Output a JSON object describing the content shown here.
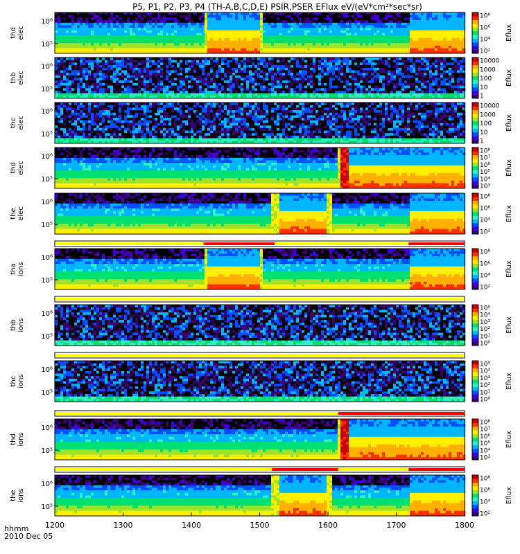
{
  "title": "P5, P1, P2, P3, P4 (TH-A,B,C,D,E) PSIR,PSER EFlux eV/(eV*cm²*sec*sr)",
  "footer": {
    "axis_unit": "hhmm",
    "date": "2010 Dec 05"
  },
  "chart_data": {
    "type": "heatmap",
    "title": "P5, P1, P2, P3, P4 (TH-A,B,C,D,E) PSIR,PSER EFlux eV/(eV*cm²*sec*sr)",
    "xlabel": "hhmm",
    "x_range": [
      1200,
      1800
    ],
    "x_ticks": [
      "1200",
      "1300",
      "1400",
      "1500",
      "1600",
      "1700",
      "1800"
    ],
    "date": "2010 Dec 05",
    "colormap": [
      "#3b0070",
      "#3f00e0",
      "#0050ff",
      "#00b7ff",
      "#2ef0c0",
      "#00e070",
      "#9ee22a",
      "#fff000",
      "#ffb000",
      "#ff3000",
      "#c80000"
    ],
    "panels": [
      {
        "id": "thd-elec",
        "ylabel": [
          "thd",
          "elec"
        ],
        "y_ticks": [
          "10⁵",
          "10⁶"
        ],
        "cbar_label": "Eflux",
        "cbar_ticks": [
          "10²",
          "10⁴",
          "10⁶",
          "10⁸"
        ],
        "intervals": [
          {
            "from": 1200,
            "to": 1418,
            "state": "quiet"
          },
          {
            "from": 1418,
            "to": 1425,
            "state": "boundary"
          },
          {
            "from": 1425,
            "to": 1500,
            "state": "sheath"
          },
          {
            "from": 1500,
            "to": 1506,
            "state": "boundary"
          },
          {
            "from": 1506,
            "to": 1718,
            "state": "quiet"
          },
          {
            "from": 1718,
            "to": 1800,
            "state": "sheath"
          }
        ]
      },
      {
        "id": "thb-elec",
        "ylabel": [
          "thb",
          "elec"
        ],
        "y_ticks": [
          "10⁵",
          "10⁶"
        ],
        "cbar_label": "Eflux",
        "cbar_ticks": [
          "1",
          "10",
          "100",
          "1000",
          "10000"
        ],
        "intervals": [
          {
            "from": 1200,
            "to": 1800,
            "state": "noise"
          }
        ]
      },
      {
        "id": "thc-elec",
        "ylabel": [
          "thc",
          "elec"
        ],
        "y_ticks": [
          "10⁵",
          "10⁶"
        ],
        "cbar_label": "Eflux",
        "cbar_ticks": [
          "1",
          "10",
          "100",
          "1000",
          "10000"
        ],
        "intervals": [
          {
            "from": 1200,
            "to": 1800,
            "state": "noise"
          }
        ]
      },
      {
        "id": "thd-elec-2",
        "ylabel": [
          "thd",
          "elec"
        ],
        "y_ticks": [
          "10⁵",
          "10⁶"
        ],
        "cbar_label": "Eflux",
        "cbar_ticks": [
          "10³",
          "10⁴",
          "10⁵",
          "10⁶",
          "10⁷",
          "10⁸"
        ],
        "intervals": [
          {
            "from": 1200,
            "to": 1615,
            "state": "quiet"
          },
          {
            "from": 1615,
            "to": 1620,
            "state": "boundary"
          },
          {
            "from": 1620,
            "to": 1630,
            "state": "hot"
          },
          {
            "from": 1630,
            "to": 1800,
            "state": "sheath"
          }
        ]
      },
      {
        "id": "the-elec",
        "ylabel": [
          "the",
          "elec"
        ],
        "y_ticks": [
          "10⁵",
          "10⁶"
        ],
        "cbar_label": "Eflux",
        "cbar_ticks": [
          "10²",
          "10⁴",
          "10⁶",
          "10⁸"
        ],
        "intervals": [
          {
            "from": 1200,
            "to": 1518,
            "state": "quiet"
          },
          {
            "from": 1518,
            "to": 1530,
            "state": "boundary"
          },
          {
            "from": 1530,
            "to": 1600,
            "state": "sheath"
          },
          {
            "from": 1600,
            "to": 1605,
            "state": "boundary"
          },
          {
            "from": 1605,
            "to": 1718,
            "state": "quiet"
          },
          {
            "from": 1718,
            "to": 1800,
            "state": "sheath"
          }
        ]
      },
      {
        "id": "tha-ions",
        "ylabel": [
          "tha",
          "ions"
        ],
        "y_ticks": [
          "10⁵",
          "10⁶"
        ],
        "cbar_label": "Eflux",
        "cbar_ticks": [
          "10²",
          "10⁴",
          "10⁶",
          "10⁸"
        ],
        "intervals": [
          {
            "from": 1200,
            "to": 1418,
            "state": "quiet"
          },
          {
            "from": 1418,
            "to": 1425,
            "state": "boundary"
          },
          {
            "from": 1425,
            "to": 1500,
            "state": "sheath"
          },
          {
            "from": 1500,
            "to": 1506,
            "state": "boundary"
          },
          {
            "from": 1506,
            "to": 1718,
            "state": "quiet"
          },
          {
            "from": 1718,
            "to": 1800,
            "state": "sheath"
          }
        ]
      },
      {
        "id": "thb-ions",
        "ylabel": [
          "thb",
          "ions"
        ],
        "y_ticks": [
          "10⁵",
          "10⁶"
        ],
        "cbar_label": "Eflux",
        "cbar_ticks": [
          "10⁰",
          "10¹",
          "10²",
          "10³",
          "10⁴",
          "10⁵"
        ],
        "intervals": [
          {
            "from": 1200,
            "to": 1800,
            "state": "noise"
          }
        ]
      },
      {
        "id": "thc-ions",
        "ylabel": [
          "thc",
          "ions"
        ],
        "y_ticks": [
          "10⁵",
          "10⁶"
        ],
        "cbar_label": "Eflux",
        "cbar_ticks": [
          "10⁰",
          "10¹",
          "10²",
          "10³",
          "10⁴",
          "10⁵"
        ],
        "intervals": [
          {
            "from": 1200,
            "to": 1800,
            "state": "noise"
          }
        ]
      },
      {
        "id": "thd-ions",
        "ylabel": [
          "thd",
          "ions"
        ],
        "y_ticks": [
          "10⁵",
          "10⁶"
        ],
        "cbar_label": "Eflux",
        "cbar_ticks": [
          "10³",
          "10⁴",
          "10⁵",
          "10⁶",
          "10⁷",
          "10⁸"
        ],
        "intervals": [
          {
            "from": 1200,
            "to": 1615,
            "state": "quiet"
          },
          {
            "from": 1615,
            "to": 1620,
            "state": "boundary"
          },
          {
            "from": 1620,
            "to": 1630,
            "state": "hot"
          },
          {
            "from": 1630,
            "to": 1800,
            "state": "sheath"
          }
        ]
      },
      {
        "id": "the-ions",
        "ylabel": [
          "the",
          "ions"
        ],
        "y_ticks": [
          "10⁵",
          "10⁶"
        ],
        "cbar_label": "Eflux",
        "cbar_ticks": [
          "10²",
          "10⁴",
          "10⁶",
          "10⁸"
        ],
        "intervals": [
          {
            "from": 1200,
            "to": 1235,
            "state": "quiet"
          },
          {
            "from": 1235,
            "to": 1518,
            "state": "quiet"
          },
          {
            "from": 1518,
            "to": 1530,
            "state": "boundary"
          },
          {
            "from": 1530,
            "to": 1600,
            "state": "sheath"
          },
          {
            "from": 1600,
            "to": 1605,
            "state": "boundary"
          },
          {
            "from": 1605,
            "to": 1718,
            "state": "quiet"
          },
          {
            "from": 1718,
            "to": 1800,
            "state": "sheath"
          }
        ]
      }
    ],
    "mode_bars": [
      {
        "after_panel": "the-elec",
        "base": "#ffff00",
        "segments": [
          {
            "from": 1418,
            "to": 1522,
            "color": "#ff0000"
          },
          {
            "from": 1718,
            "to": 1800,
            "color": "#ff0000"
          }
        ]
      },
      {
        "after_panel": "tha-ions",
        "base": "#ffff00",
        "segments": []
      },
      {
        "after_panel": "thb-ions",
        "base": "#ffff00",
        "segments": []
      },
      {
        "after_panel": "thc-ions",
        "base": "#ffff00",
        "segments": [
          {
            "from": 1615,
            "to": 1800,
            "color": "#ff0000"
          }
        ]
      },
      {
        "after_panel": "thd-ions",
        "base": "#ffff00",
        "segments": [
          {
            "from": 1518,
            "to": 1615,
            "color": "#ff0000"
          },
          {
            "from": 1718,
            "to": 1800,
            "color": "#ff0000"
          }
        ]
      }
    ]
  }
}
